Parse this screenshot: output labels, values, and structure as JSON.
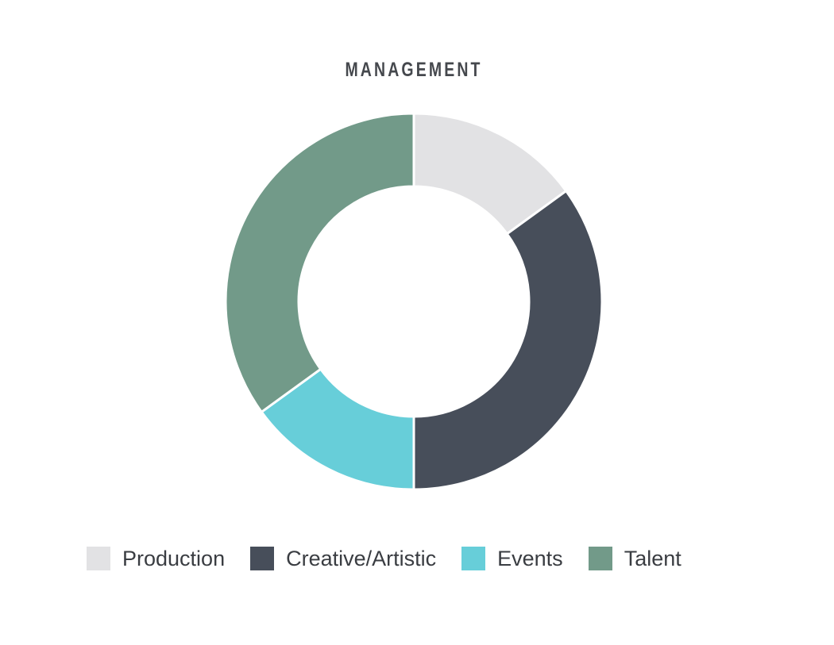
{
  "chart_data": {
    "type": "pie",
    "style": "donut",
    "title": "MANAGEMENT",
    "categories": [
      "Production",
      "Creative/Artistic",
      "Events",
      "Talent"
    ],
    "values": [
      15,
      35,
      15,
      35
    ],
    "colors": [
      "#e2e2e4",
      "#474e5a",
      "#67ced9",
      "#729a89"
    ],
    "legend_position": "bottom"
  }
}
